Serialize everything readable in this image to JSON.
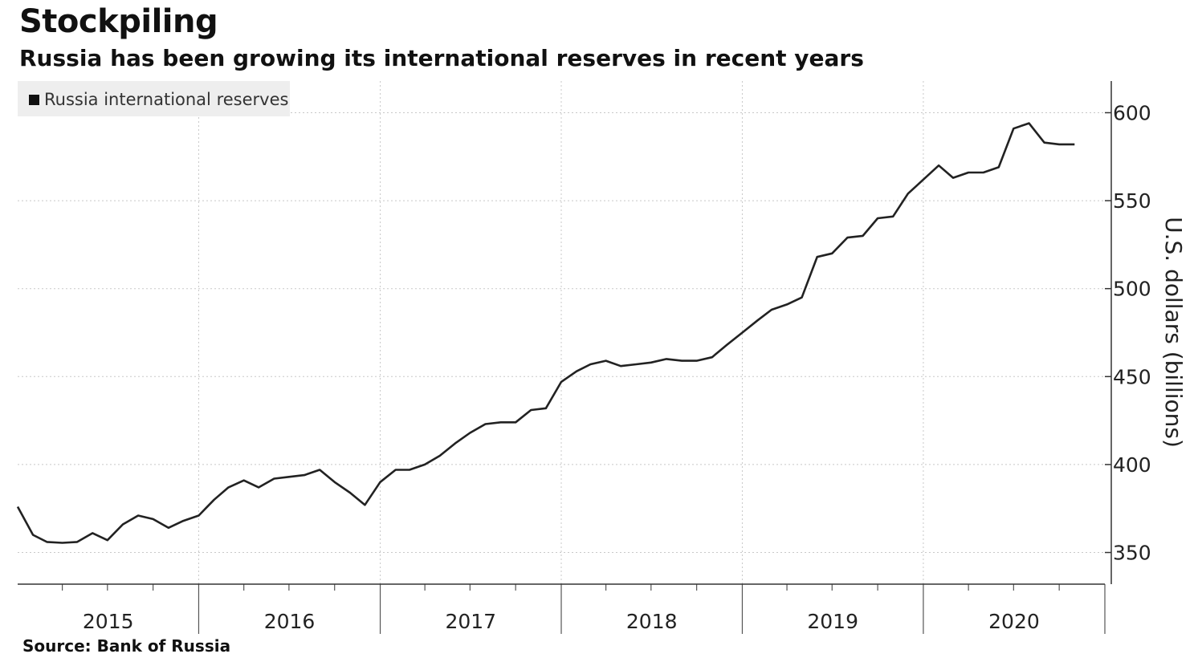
{
  "header": {
    "title": "Stockpiling",
    "subtitle": "Russia has been growing its international reserves in recent years"
  },
  "footer": {
    "source": "Source: Bank of Russia"
  },
  "colors": {
    "line": "#222222",
    "grid": "#c8c8c8",
    "legend_bg": "#eeeeee"
  },
  "chart_data": {
    "type": "line",
    "title": "Stockpiling",
    "subtitle": "Russia has been growing its international reserves in recent years",
    "xlabel": "",
    "ylabel": "U.S. dollars (billions)",
    "ylim": [
      332,
      618
    ],
    "xlim": [
      "2015-01-01",
      "2021-01-01"
    ],
    "grid": true,
    "y_axis_position": "right",
    "legend": {
      "position": "top-left",
      "entries": [
        "Russia international reserves"
      ]
    },
    "yticks": [
      350,
      400,
      450,
      500,
      550,
      600
    ],
    "xtick_labels": [
      "2015",
      "2016",
      "2017",
      "2018",
      "2019",
      "2020"
    ],
    "series": [
      {
        "name": "Russia international reserves",
        "x": [
          "2015-01-01",
          "2015-02-01",
          "2015-03-01",
          "2015-04-01",
          "2015-05-01",
          "2015-06-01",
          "2015-07-01",
          "2015-08-01",
          "2015-09-01",
          "2015-10-01",
          "2015-11-01",
          "2015-12-01",
          "2016-01-01",
          "2016-02-01",
          "2016-03-01",
          "2016-04-01",
          "2016-05-01",
          "2016-06-01",
          "2016-07-01",
          "2016-08-01",
          "2016-09-01",
          "2016-10-01",
          "2016-11-01",
          "2016-12-01",
          "2017-01-01",
          "2017-02-01",
          "2017-03-01",
          "2017-04-01",
          "2017-05-01",
          "2017-06-01",
          "2017-07-01",
          "2017-08-01",
          "2017-09-01",
          "2017-10-01",
          "2017-11-01",
          "2017-12-01",
          "2018-01-01",
          "2018-02-01",
          "2018-03-01",
          "2018-04-01",
          "2018-05-01",
          "2018-06-01",
          "2018-07-01",
          "2018-08-01",
          "2018-09-01",
          "2018-10-01",
          "2018-11-01",
          "2018-12-01",
          "2019-01-01",
          "2019-02-01",
          "2019-03-01",
          "2019-04-01",
          "2019-05-01",
          "2019-06-01",
          "2019-07-01",
          "2019-08-01",
          "2019-09-01",
          "2019-10-01",
          "2019-11-01",
          "2019-12-01",
          "2020-01-01",
          "2020-02-01",
          "2020-03-01",
          "2020-04-01",
          "2020-05-01",
          "2020-06-01",
          "2020-07-01",
          "2020-08-01",
          "2020-09-01",
          "2020-10-01",
          "2020-11-01",
          "2020-12-01"
        ],
        "values": [
          376,
          360,
          356,
          355.5,
          356,
          361,
          357,
          366,
          371,
          369,
          364,
          368,
          371,
          380,
          387,
          391,
          387,
          392,
          393,
          394,
          397,
          390,
          384,
          377,
          390,
          397,
          397,
          400,
          405,
          412,
          418,
          423,
          424,
          424,
          431,
          432,
          447,
          453,
          457,
          459,
          456,
          457,
          458,
          460,
          459,
          459,
          461,
          468,
          475,
          482,
          488,
          491,
          495,
          518,
          520,
          529,
          530,
          540,
          541,
          554,
          562,
          570,
          563,
          566,
          566,
          569,
          591,
          594,
          583,
          582,
          582,
          null
        ]
      }
    ]
  }
}
